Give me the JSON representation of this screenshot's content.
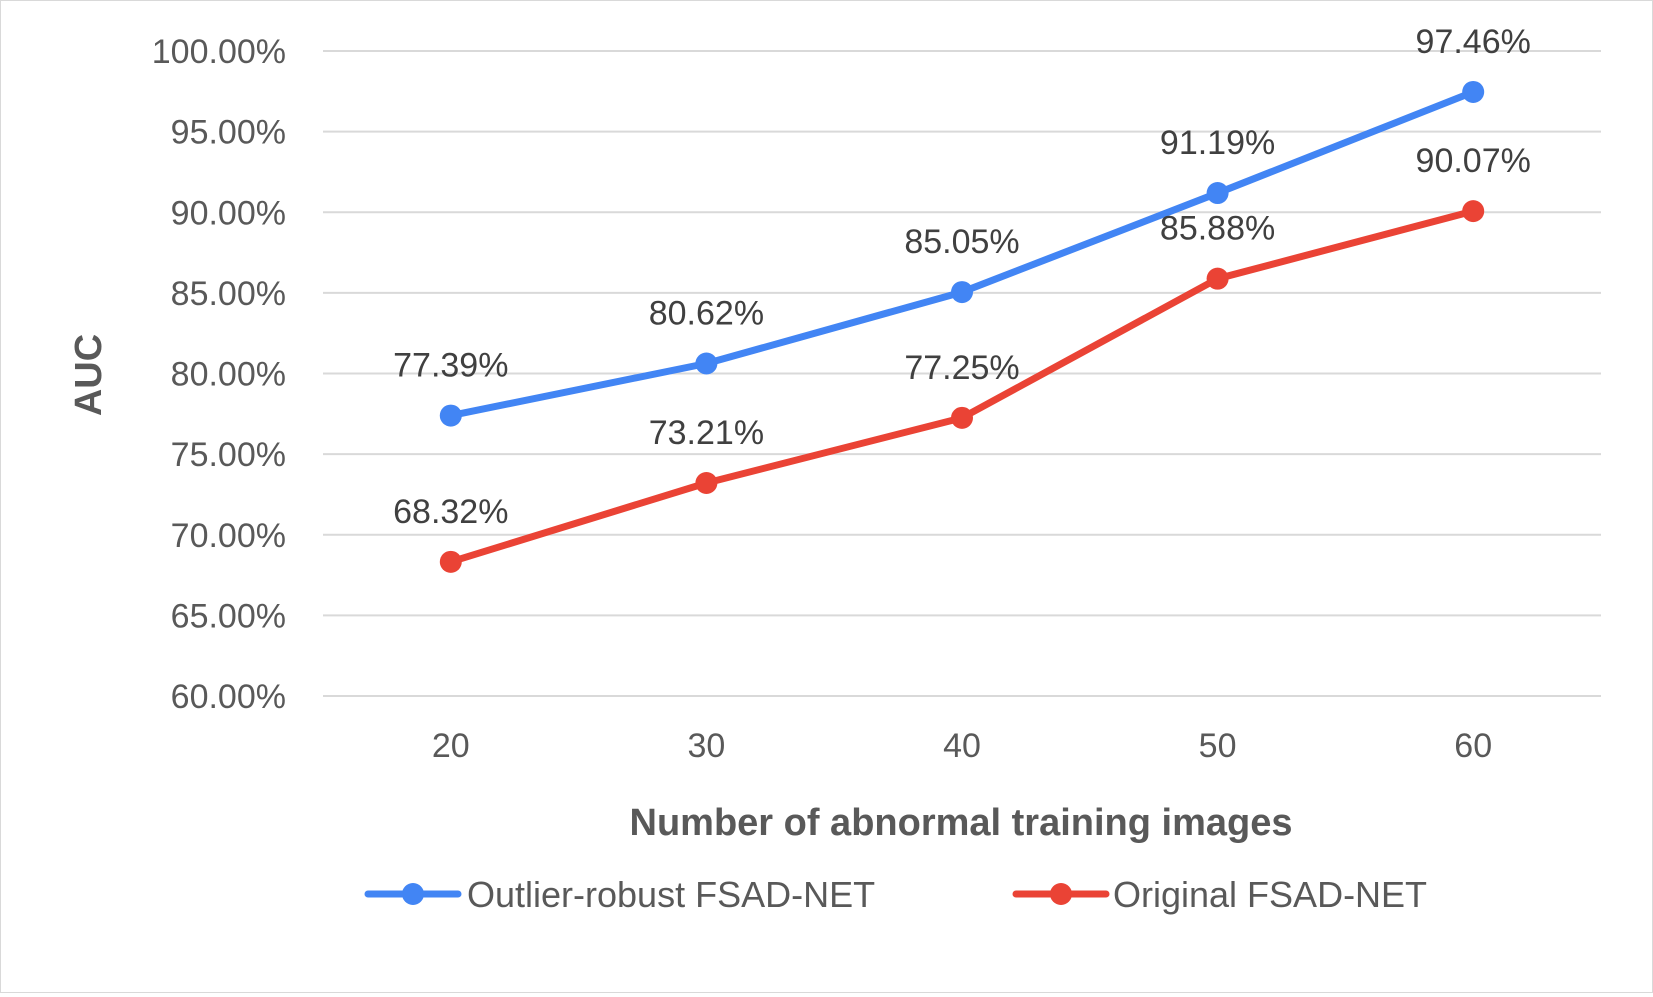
{
  "chart_data": {
    "type": "line",
    "categories": [
      "20",
      "30",
      "40",
      "50",
      "60"
    ],
    "series": [
      {
        "name": "Outlier-robust FSAD-NET",
        "values": [
          77.39,
          80.62,
          85.05,
          91.19,
          97.46
        ],
        "labels": [
          "77.39%",
          "80.62%",
          "85.05%",
          "91.19%",
          "97.46%"
        ],
        "color": "#4285f4"
      },
      {
        "name": "Original FSAD-NET",
        "values": [
          68.32,
          73.21,
          77.25,
          85.88,
          90.07
        ],
        "labels": [
          "68.32%",
          "73.21%",
          "77.25%",
          "85.88%",
          "90.07%"
        ],
        "color": "#ea4335"
      }
    ],
    "y_ticks": [
      60,
      65,
      70,
      75,
      80,
      85,
      90,
      95,
      100
    ],
    "y_tick_labels": [
      "60.00%",
      "65.00%",
      "70.00%",
      "75.00%",
      "80.00%",
      "85.00%",
      "90.00%",
      "95.00%",
      "100.00%"
    ],
    "ylim": [
      60,
      100
    ],
    "xlabel": "Number of abnormal training images",
    "ylabel": "AUC",
    "grid": "horizontal",
    "legend_position": "bottom"
  }
}
